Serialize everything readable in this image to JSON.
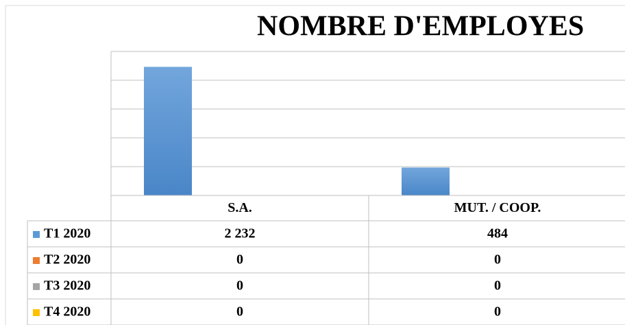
{
  "chart_data": {
    "type": "bar",
    "title": "NOMBRE D'EMPLOYES",
    "categories": [
      "S.A.",
      "MUT. / COOP."
    ],
    "series": [
      {
        "name": "T1 2020",
        "color": "#5b9bd5",
        "values": [
          2232,
          484
        ],
        "value_labels": [
          "2 232",
          "484"
        ]
      },
      {
        "name": "T2 2020",
        "color": "#ed7d31",
        "values": [
          0,
          0
        ]
      },
      {
        "name": "T3 2020",
        "color": "#a5a5a5",
        "values": [
          0,
          0
        ]
      },
      {
        "name": "T4 2020",
        "color": "#ffc000",
        "values": [
          0,
          0
        ]
      }
    ],
    "ylim": [
      0,
      2500
    ],
    "yticks": [
      0,
      500,
      1000,
      1500,
      2000,
      2500
    ],
    "grid": true,
    "data_table": true
  }
}
